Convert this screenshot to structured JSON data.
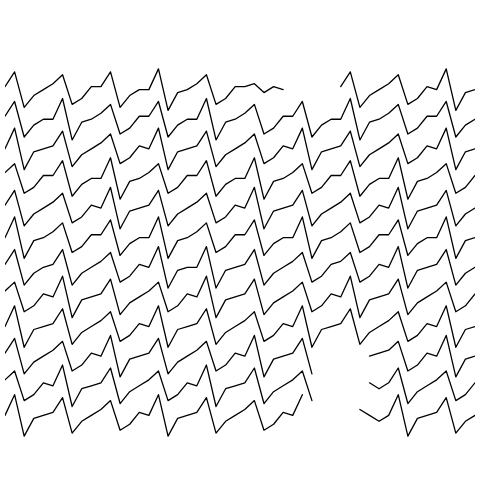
{
  "chart_data": {
    "type": "line",
    "tick_labels": false,
    "grid": false,
    "xlim": [
      0,
      49
    ],
    "ylim": [
      0,
      13
    ],
    "x": [
      0,
      1,
      2,
      3,
      4,
      5,
      6,
      7,
      8,
      9,
      10,
      11,
      12,
      13,
      14,
      15,
      16,
      17,
      18,
      19,
      20,
      21,
      22,
      23,
      24,
      25,
      26,
      27,
      28,
      29,
      30,
      31,
      32,
      33,
      34,
      35,
      36,
      37,
      38,
      39,
      40,
      41,
      42,
      43,
      44,
      45,
      46,
      47,
      48,
      49
    ],
    "series": [
      {
        "color": "#000000",
        "values": [
          12.1,
          12.6,
          11.4,
          11.8,
          12.0,
          12.2,
          12.5,
          11.5,
          11.7,
          12.1,
          12.1,
          12.6,
          11.4,
          11.8,
          12.0,
          12.0,
          12.7,
          11.3,
          11.9,
          12.0,
          12.2,
          12.5,
          11.5,
          11.7,
          12.1,
          12.1,
          12.2,
          11.9,
          12.1,
          12.0,
          null,
          null,
          null,
          null,
          null,
          12.1,
          12.6,
          11.4,
          11.8,
          12.0,
          12.2,
          12.5,
          11.5,
          11.7,
          12.1,
          12.0,
          12.7,
          11.3,
          11.9,
          12.0
        ]
      },
      {
        "color": "#000000",
        "values": [
          11.1,
          11.6,
          10.4,
          10.8,
          11.0,
          11.0,
          11.7,
          10.3,
          10.9,
          11.0,
          11.2,
          11.5,
          10.5,
          10.7,
          11.1,
          11.1,
          11.6,
          10.4,
          10.8,
          11.0,
          11.0,
          11.7,
          10.3,
          10.9,
          11.0,
          11.2,
          11.5,
          10.5,
          10.7,
          11.1,
          11.1,
          11.6,
          10.4,
          10.8,
          11.0,
          11.0,
          11.7,
          10.3,
          10.9,
          11.0,
          11.2,
          11.5,
          10.5,
          10.7,
          11.1,
          11.1,
          11.6,
          10.4,
          10.8,
          11.0
        ]
      },
      {
        "color": "#000000",
        "values": [
          10.0,
          10.7,
          9.3,
          9.9,
          10.0,
          10.1,
          10.6,
          9.4,
          9.8,
          10.0,
          10.2,
          10.5,
          9.5,
          9.7,
          10.1,
          10.0,
          10.7,
          9.3,
          9.9,
          10.0,
          10.1,
          10.6,
          9.4,
          9.8,
          10.0,
          10.2,
          10.5,
          9.5,
          9.7,
          10.1,
          10.0,
          10.7,
          9.3,
          9.9,
          10.0,
          10.1,
          10.6,
          9.4,
          9.8,
          10.0,
          10.2,
          10.5,
          9.5,
          9.7,
          10.1,
          10.0,
          10.7,
          9.3,
          9.9,
          10.0
        ]
      },
      {
        "color": "#000000",
        "values": [
          9.2,
          9.5,
          8.5,
          8.7,
          9.1,
          9.1,
          9.6,
          8.4,
          8.8,
          9.0,
          9.0,
          9.7,
          8.3,
          8.9,
          9.0,
          9.2,
          9.5,
          8.5,
          8.7,
          9.1,
          9.1,
          9.6,
          8.4,
          8.8,
          9.0,
          9.0,
          9.7,
          8.3,
          8.9,
          9.0,
          9.2,
          9.5,
          8.5,
          8.7,
          9.1,
          9.1,
          9.6,
          8.4,
          8.8,
          9.0,
          9.0,
          9.7,
          8.3,
          8.9,
          9.0,
          9.2,
          9.5,
          8.5,
          8.7,
          9.1
        ]
      },
      {
        "color": "#000000",
        "values": [
          8.1,
          8.6,
          7.4,
          7.8,
          8.0,
          8.2,
          8.5,
          7.5,
          7.7,
          8.1,
          8.0,
          8.7,
          7.3,
          7.9,
          8.0,
          8.1,
          8.6,
          7.4,
          7.8,
          8.0,
          8.2,
          8.5,
          7.5,
          7.7,
          8.1,
          8.0,
          8.7,
          7.3,
          7.9,
          8.0,
          8.1,
          8.6,
          7.4,
          7.8,
          8.0,
          8.2,
          8.5,
          7.5,
          7.7,
          8.1,
          8.0,
          8.7,
          7.3,
          7.9,
          8.0,
          8.1,
          8.6,
          7.4,
          7.8,
          8.0
        ]
      },
      {
        "color": "#000000",
        "values": [
          7.0,
          7.7,
          6.3,
          6.9,
          7.0,
          7.2,
          7.5,
          6.5,
          6.7,
          7.1,
          7.1,
          7.6,
          6.4,
          6.8,
          7.0,
          7.0,
          7.7,
          6.3,
          6.9,
          7.0,
          7.2,
          7.5,
          6.5,
          6.7,
          7.1,
          7.1,
          7.6,
          6.4,
          6.8,
          7.0,
          7.0,
          7.7,
          6.3,
          6.9,
          7.0,
          7.2,
          7.5,
          6.5,
          6.7,
          7.1,
          7.1,
          7.6,
          6.4,
          6.8,
          7.0,
          7.0,
          7.7,
          6.3,
          6.9,
          7.0
        ]
      },
      {
        "color": "#000000",
        "values": [
          6.1,
          6.6,
          5.4,
          5.8,
          6.0,
          6.1,
          6.6,
          5.4,
          5.8,
          6.0,
          6.2,
          6.5,
          5.5,
          5.7,
          6.1,
          6.0,
          6.7,
          5.3,
          5.9,
          6.0,
          6.0,
          6.7,
          5.3,
          5.9,
          6.0,
          6.1,
          6.6,
          5.4,
          5.8,
          6.0,
          6.2,
          6.5,
          5.5,
          5.7,
          6.1,
          6.2,
          6.5,
          5.5,
          5.7,
          6.1,
          6.0,
          6.7,
          5.3,
          5.9,
          6.0,
          6.1,
          6.6,
          5.4,
          5.8,
          6.0
        ]
      },
      {
        "color": "#000000",
        "values": [
          5.2,
          5.5,
          4.5,
          4.7,
          5.1,
          5.0,
          5.7,
          4.3,
          4.9,
          5.0,
          5.1,
          5.6,
          4.4,
          4.8,
          5.0,
          5.2,
          5.5,
          4.5,
          4.7,
          5.1,
          5.0,
          5.7,
          4.3,
          4.9,
          5.0,
          5.1,
          5.6,
          4.4,
          4.8,
          5.0,
          5.2,
          5.5,
          4.5,
          4.7,
          5.1,
          5.0,
          5.7,
          4.3,
          4.9,
          5.0,
          5.1,
          5.6,
          4.4,
          4.8,
          5.0,
          5.2,
          5.5,
          4.5,
          4.7,
          5.1
        ]
      },
      {
        "color": "#000000",
        "values": [
          4.0,
          4.7,
          3.3,
          3.9,
          4.0,
          4.1,
          4.6,
          3.4,
          3.8,
          4.0,
          4.2,
          4.5,
          3.5,
          3.7,
          4.1,
          4.0,
          4.7,
          3.3,
          3.9,
          4.0,
          4.1,
          4.6,
          3.4,
          3.8,
          4.0,
          4.2,
          4.5,
          3.5,
          3.7,
          4.1,
          4.0,
          4.7,
          3.3,
          3.9,
          4.0,
          4.1,
          4.6,
          3.4,
          3.8,
          4.0,
          4.2,
          4.5,
          3.5,
          3.7,
          4.1,
          4.0,
          4.7,
          3.3,
          3.9,
          4.0
        ]
      },
      {
        "color": "#000000",
        "values": [
          3.1,
          3.6,
          2.4,
          2.8,
          3.0,
          3.2,
          3.5,
          2.5,
          2.7,
          3.1,
          3.0,
          3.7,
          2.3,
          2.9,
          3.0,
          3.1,
          3.6,
          2.4,
          2.8,
          3.0,
          3.2,
          3.5,
          2.5,
          2.7,
          3.1,
          3.0,
          3.7,
          2.3,
          2.9,
          3.0,
          3.1,
          3.6,
          2.4,
          null,
          null,
          null,
          null,
          null,
          3.0,
          3.1,
          3.2,
          3.5,
          2.5,
          2.7,
          3.1,
          3.0,
          3.7,
          2.3,
          2.9,
          3.0
        ]
      },
      {
        "color": "#000000",
        "values": [
          2.2,
          2.5,
          1.5,
          1.7,
          2.1,
          2.0,
          2.7,
          1.3,
          1.9,
          2.0,
          2.1,
          2.6,
          1.4,
          1.8,
          2.0,
          2.2,
          2.5,
          1.5,
          1.7,
          2.1,
          2.0,
          2.7,
          1.3,
          1.9,
          2.0,
          2.1,
          2.6,
          1.4,
          1.8,
          2.0,
          2.2,
          2.5,
          1.5,
          null,
          null,
          null,
          null,
          null,
          2.1,
          1.9,
          2.1,
          2.6,
          1.4,
          1.8,
          2.0,
          2.2,
          2.5,
          1.5,
          1.7,
          2.1
        ]
      },
      {
        "color": "#000000",
        "values": [
          1.0,
          1.7,
          0.3,
          0.9,
          1.0,
          1.1,
          1.6,
          0.4,
          0.8,
          1.0,
          1.2,
          1.5,
          0.5,
          0.7,
          1.1,
          1.0,
          1.7,
          0.3,
          0.9,
          1.0,
          1.1,
          1.6,
          0.4,
          0.8,
          1.0,
          1.2,
          1.5,
          0.5,
          0.7,
          1.1,
          1.0,
          1.7,
          null,
          null,
          null,
          null,
          null,
          1.2,
          1.0,
          0.8,
          1.0,
          1.7,
          0.3,
          0.9,
          1.0,
          1.1,
          1.6,
          0.4,
          0.8,
          1.0
        ]
      }
    ]
  }
}
